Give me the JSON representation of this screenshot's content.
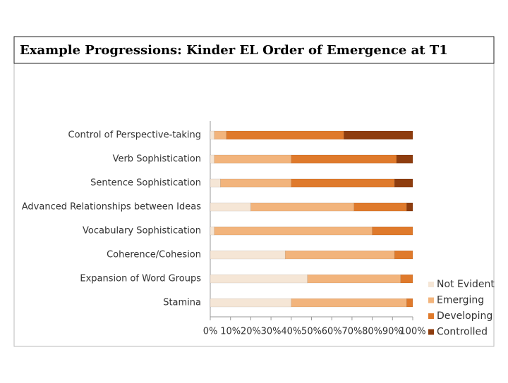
{
  "chart_data": {
    "type": "stacked-bar-horizontal",
    "title": "Example Progressions: Kinder EL Order of Emergence at T1",
    "categories": [
      "Control of Perspective-taking",
      "Verb Sophistication",
      "Sentence Sophistication",
      "Advanced Relationships between Ideas",
      "Vocabulary Sophistication",
      "Coherence/Cohesion",
      "Expansion of Word Groups",
      "Stamina"
    ],
    "series": [
      {
        "name": "Not Evident",
        "color": "#f5e6d6",
        "values": [
          2,
          2,
          5,
          20,
          2,
          37,
          48,
          40
        ]
      },
      {
        "name": "Emerging",
        "color": "#f2b47c",
        "values": [
          6,
          38,
          35,
          51,
          78,
          54,
          46,
          57
        ]
      },
      {
        "name": "Developing",
        "color": "#df7a2c",
        "values": [
          58,
          52,
          51,
          26,
          20,
          9,
          6,
          3
        ]
      },
      {
        "name": "Controlled",
        "color": "#8e3d0f",
        "values": [
          34,
          8,
          9,
          3,
          0,
          0,
          0,
          0
        ]
      }
    ],
    "xlim": [
      0,
      100
    ],
    "xticks": [
      {
        "value": 0,
        "label": "0%"
      },
      {
        "value": 10,
        "label": "10%"
      },
      {
        "value": 20,
        "label": "20%"
      },
      {
        "value": 30,
        "label": "30%"
      },
      {
        "value": 40,
        "label": "40%"
      },
      {
        "value": 50,
        "label": "50%"
      },
      {
        "value": 60,
        "label": "60%"
      },
      {
        "value": 70,
        "label": "70%"
      },
      {
        "value": 80,
        "label": "80%"
      },
      {
        "value": 90,
        "label": "90%"
      },
      {
        "value": 100,
        "label": "100%"
      }
    ],
    "grid": false,
    "legend": "right"
  }
}
